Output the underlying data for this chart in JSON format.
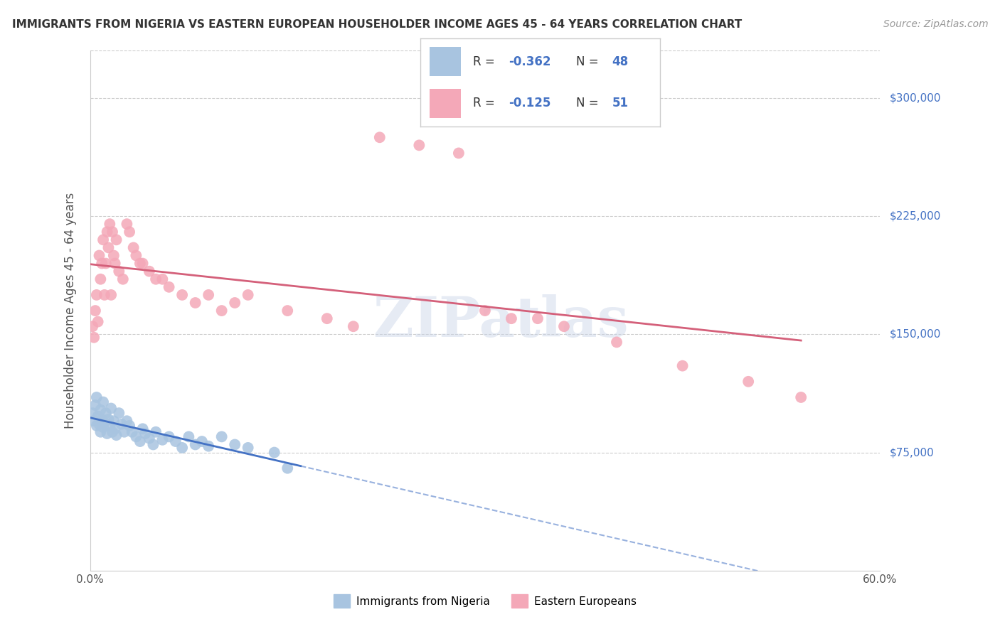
{
  "title": "IMMIGRANTS FROM NIGERIA VS EASTERN EUROPEAN HOUSEHOLDER INCOME AGES 45 - 64 YEARS CORRELATION CHART",
  "source": "Source: ZipAtlas.com",
  "ylabel": "Householder Income Ages 45 - 64 years",
  "xlim": [
    0.0,
    0.6
  ],
  "ylim": [
    0,
    330000
  ],
  "ytick_labels": [
    "$75,000",
    "$150,000",
    "$225,000",
    "$300,000"
  ],
  "ytick_values": [
    75000,
    150000,
    225000,
    300000
  ],
  "nigeria_color": "#a8c4e0",
  "eastern_color": "#f4a8b8",
  "nigeria_line_color": "#4472c4",
  "eastern_line_color": "#d4607a",
  "legend_text_color": "#4472c4",
  "nigeria_R": -0.362,
  "nigeria_N": 48,
  "eastern_R": -0.125,
  "eastern_N": 51,
  "watermark": "ZIPatlas",
  "nigeria_x": [
    0.002,
    0.003,
    0.004,
    0.005,
    0.005,
    0.006,
    0.007,
    0.008,
    0.008,
    0.009,
    0.01,
    0.01,
    0.011,
    0.012,
    0.013,
    0.014,
    0.015,
    0.016,
    0.017,
    0.018,
    0.019,
    0.02,
    0.022,
    0.024,
    0.026,
    0.028,
    0.03,
    0.032,
    0.035,
    0.038,
    0.04,
    0.042,
    0.045,
    0.048,
    0.05,
    0.055,
    0.06,
    0.065,
    0.07,
    0.075,
    0.08,
    0.085,
    0.09,
    0.1,
    0.11,
    0.12,
    0.14,
    0.15
  ],
  "nigeria_y": [
    100000,
    95000,
    105000,
    92000,
    110000,
    98000,
    93000,
    88000,
    102000,
    96000,
    91000,
    107000,
    94000,
    100000,
    87000,
    96000,
    92000,
    103000,
    88000,
    95000,
    90000,
    86000,
    100000,
    93000,
    88000,
    95000,
    92000,
    88000,
    85000,
    82000,
    90000,
    87000,
    84000,
    80000,
    88000,
    83000,
    85000,
    82000,
    78000,
    85000,
    80000,
    82000,
    79000,
    85000,
    80000,
    78000,
    75000,
    65000
  ],
  "eastern_x": [
    0.002,
    0.003,
    0.004,
    0.005,
    0.006,
    0.007,
    0.008,
    0.009,
    0.01,
    0.011,
    0.012,
    0.013,
    0.014,
    0.015,
    0.016,
    0.017,
    0.018,
    0.019,
    0.02,
    0.022,
    0.025,
    0.028,
    0.03,
    0.033,
    0.035,
    0.038,
    0.04,
    0.045,
    0.05,
    0.055,
    0.06,
    0.07,
    0.08,
    0.09,
    0.1,
    0.11,
    0.12,
    0.15,
    0.18,
    0.2,
    0.22,
    0.25,
    0.28,
    0.3,
    0.32,
    0.34,
    0.36,
    0.4,
    0.45,
    0.5,
    0.54
  ],
  "eastern_y": [
    155000,
    148000,
    165000,
    175000,
    158000,
    200000,
    185000,
    195000,
    210000,
    175000,
    195000,
    215000,
    205000,
    220000,
    175000,
    215000,
    200000,
    195000,
    210000,
    190000,
    185000,
    220000,
    215000,
    205000,
    200000,
    195000,
    195000,
    190000,
    185000,
    185000,
    180000,
    175000,
    170000,
    175000,
    165000,
    170000,
    175000,
    165000,
    160000,
    155000,
    275000,
    270000,
    265000,
    165000,
    160000,
    160000,
    155000,
    145000,
    130000,
    120000,
    110000
  ]
}
